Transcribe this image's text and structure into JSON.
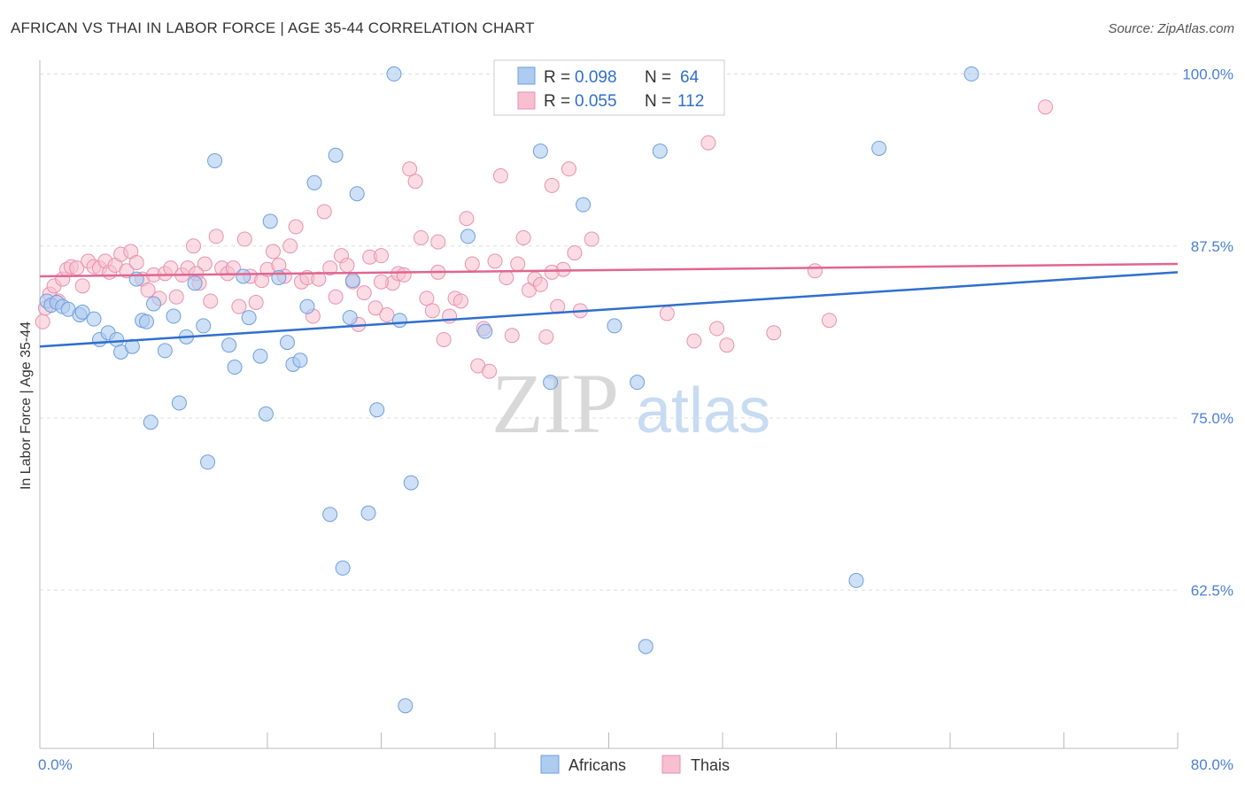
{
  "title": "AFRICAN VS THAI IN LABOR FORCE | AGE 35-44 CORRELATION CHART",
  "source": "Source: ZipAtlas.com",
  "watermark": {
    "zip": "ZIP",
    "atlas": "atlas"
  },
  "legend": {
    "africans": {
      "r_label": "R =",
      "r_value": "0.098",
      "n_label": "N =",
      "n_value": "64"
    },
    "thais": {
      "r_label": "R =",
      "r_value": "0.055",
      "n_label": "N =",
      "n_value": "112"
    }
  },
  "bottom_legend": {
    "africans": "Africans",
    "thais": "Thais"
  },
  "colors": {
    "africans_fill": "#aecbf0",
    "africans_stroke": "#6f9fde",
    "africans_line": "#2f6fcc",
    "thais_fill": "#f7bfd0",
    "thais_stroke": "#e892ae",
    "thais_line": "#e06690",
    "tick_text": "#4a7fd4",
    "grid": "#dddddd"
  },
  "chart_data": {
    "type": "scatter",
    "title": "AFRICAN VS THAI IN LABOR FORCE | AGE 35-44 CORRELATION CHART",
    "xlabel": "",
    "ylabel": "In Labor Force | Age 35-44",
    "xlim": [
      0,
      80
    ],
    "ylim": [
      51,
      101
    ],
    "x_tick_labels": [
      "0.0%",
      "80.0%"
    ],
    "y_ticks": [
      62.5,
      75.0,
      87.5,
      100.0
    ],
    "y_tick_labels": [
      "62.5%",
      "75.0%",
      "87.5%",
      "100.0%"
    ],
    "grid": "horizontal dashed",
    "legend_position": "top-center",
    "series": [
      {
        "name": "Africans",
        "r": 0.098,
        "n": 64,
        "trend": [
          [
            0,
            80.2
          ],
          [
            80,
            85.6
          ]
        ],
        "points": [
          [
            0.5,
            83.5
          ],
          [
            0.8,
            83.2
          ],
          [
            1.2,
            83.4
          ],
          [
            1.6,
            83.1
          ],
          [
            2.0,
            82.9
          ],
          [
            2.8,
            82.5
          ],
          [
            3.0,
            82.7
          ],
          [
            3.8,
            82.2
          ],
          [
            4.2,
            80.7
          ],
          [
            4.8,
            81.2
          ],
          [
            5.4,
            80.7
          ],
          [
            5.7,
            79.8
          ],
          [
            6.5,
            80.2
          ],
          [
            6.8,
            85.1
          ],
          [
            7.2,
            82.1
          ],
          [
            7.8,
            74.7
          ],
          [
            8.0,
            83.3
          ],
          [
            8.8,
            79.9
          ],
          [
            9.4,
            82.4
          ],
          [
            9.8,
            76.1
          ],
          [
            10.3,
            80.9
          ],
          [
            10.9,
            84.8
          ],
          [
            11.5,
            81.7
          ],
          [
            11.8,
            71.8
          ],
          [
            12.3,
            93.7
          ],
          [
            13.3,
            80.3
          ],
          [
            13.7,
            78.7
          ],
          [
            14.3,
            85.3
          ],
          [
            14.7,
            82.3
          ],
          [
            15.5,
            79.5
          ],
          [
            15.9,
            75.3
          ],
          [
            16.2,
            89.3
          ],
          [
            16.8,
            85.2
          ],
          [
            17.4,
            80.5
          ],
          [
            17.8,
            78.9
          ],
          [
            18.3,
            79.2
          ],
          [
            18.8,
            83.1
          ],
          [
            19.3,
            92.1
          ],
          [
            20.4,
            68.0
          ],
          [
            20.8,
            94.1
          ],
          [
            21.3,
            64.1
          ],
          [
            21.8,
            82.3
          ],
          [
            22.3,
            91.3
          ],
          [
            23.1,
            68.1
          ],
          [
            23.7,
            75.6
          ],
          [
            24.9,
            100.0
          ],
          [
            25.3,
            82.1
          ],
          [
            25.7,
            54.1
          ],
          [
            26.1,
            70.3
          ],
          [
            30.1,
            88.2
          ],
          [
            31.3,
            81.3
          ],
          [
            33.0,
            100.0
          ],
          [
            35.2,
            94.4
          ],
          [
            35.9,
            77.6
          ],
          [
            38.2,
            90.5
          ],
          [
            40.4,
            81.7
          ],
          [
            42.0,
            77.6
          ],
          [
            42.6,
            58.4
          ],
          [
            43.6,
            94.4
          ],
          [
            57.4,
            63.2
          ],
          [
            59.0,
            94.6
          ],
          [
            65.5,
            100.0
          ],
          [
            7.5,
            82.0
          ],
          [
            22.0,
            85.0
          ]
        ]
      },
      {
        "name": "Thais",
        "r": 0.055,
        "n": 112,
        "trend": [
          [
            0,
            85.3
          ],
          [
            80,
            86.2
          ]
        ],
        "points": [
          [
            0.2,
            82.0
          ],
          [
            0.4,
            83.0
          ],
          [
            0.7,
            84.0
          ],
          [
            1.0,
            84.6
          ],
          [
            1.3,
            83.5
          ],
          [
            1.6,
            85.1
          ],
          [
            1.9,
            85.8
          ],
          [
            2.2,
            86.0
          ],
          [
            2.6,
            85.9
          ],
          [
            3.0,
            84.6
          ],
          [
            3.4,
            86.4
          ],
          [
            3.8,
            86.0
          ],
          [
            4.2,
            85.9
          ],
          [
            4.6,
            86.4
          ],
          [
            4.9,
            85.6
          ],
          [
            5.3,
            86.1
          ],
          [
            5.7,
            86.9
          ],
          [
            6.1,
            85.7
          ],
          [
            6.4,
            87.1
          ],
          [
            6.8,
            86.3
          ],
          [
            7.2,
            85.1
          ],
          [
            7.6,
            84.3
          ],
          [
            8.0,
            85.4
          ],
          [
            8.4,
            83.7
          ],
          [
            8.8,
            85.5
          ],
          [
            9.2,
            85.9
          ],
          [
            9.6,
            83.8
          ],
          [
            10.0,
            85.4
          ],
          [
            10.4,
            85.9
          ],
          [
            10.8,
            87.5
          ],
          [
            11.2,
            84.8
          ],
          [
            11.6,
            86.2
          ],
          [
            12.0,
            83.5
          ],
          [
            12.4,
            88.2
          ],
          [
            12.8,
            85.9
          ],
          [
            13.2,
            85.5
          ],
          [
            13.6,
            85.9
          ],
          [
            14.0,
            83.1
          ],
          [
            14.4,
            88.0
          ],
          [
            14.8,
            85.3
          ],
          [
            15.2,
            83.4
          ],
          [
            15.6,
            85.0
          ],
          [
            16.0,
            85.8
          ],
          [
            16.4,
            87.1
          ],
          [
            16.8,
            86.1
          ],
          [
            17.2,
            85.3
          ],
          [
            17.6,
            87.5
          ],
          [
            18.0,
            88.9
          ],
          [
            18.4,
            84.9
          ],
          [
            18.8,
            85.2
          ],
          [
            19.2,
            82.4
          ],
          [
            19.6,
            85.1
          ],
          [
            20.0,
            90.0
          ],
          [
            20.4,
            85.9
          ],
          [
            20.8,
            83.8
          ],
          [
            21.2,
            86.8
          ],
          [
            21.6,
            86.1
          ],
          [
            22.0,
            84.9
          ],
          [
            22.4,
            81.8
          ],
          [
            22.8,
            84.1
          ],
          [
            23.2,
            86.7
          ],
          [
            23.6,
            83.0
          ],
          [
            24.0,
            86.8
          ],
          [
            24.4,
            82.5
          ],
          [
            24.8,
            84.8
          ],
          [
            25.2,
            85.5
          ],
          [
            25.6,
            85.4
          ],
          [
            26.0,
            93.1
          ],
          [
            26.4,
            92.2
          ],
          [
            26.8,
            88.1
          ],
          [
            27.2,
            83.7
          ],
          [
            27.6,
            82.8
          ],
          [
            28.0,
            87.8
          ],
          [
            28.4,
            80.7
          ],
          [
            28.8,
            82.4
          ],
          [
            29.2,
            83.7
          ],
          [
            29.6,
            83.5
          ],
          [
            30.0,
            89.5
          ],
          [
            30.4,
            86.2
          ],
          [
            30.8,
            78.8
          ],
          [
            31.2,
            81.5
          ],
          [
            31.6,
            78.4
          ],
          [
            32.0,
            86.4
          ],
          [
            32.4,
            92.6
          ],
          [
            32.8,
            85.2
          ],
          [
            33.2,
            81.0
          ],
          [
            33.6,
            86.2
          ],
          [
            34.0,
            88.1
          ],
          [
            34.4,
            84.3
          ],
          [
            34.8,
            85.1
          ],
          [
            35.2,
            84.7
          ],
          [
            35.6,
            80.9
          ],
          [
            36.0,
            91.9
          ],
          [
            36.4,
            83.1
          ],
          [
            36.8,
            85.8
          ],
          [
            37.2,
            93.1
          ],
          [
            37.6,
            87.0
          ],
          [
            38.0,
            82.8
          ],
          [
            38.8,
            88.0
          ],
          [
            44.1,
            82.6
          ],
          [
            46.0,
            80.6
          ],
          [
            47.0,
            95.0
          ],
          [
            47.6,
            81.5
          ],
          [
            48.3,
            80.3
          ],
          [
            51.6,
            81.2
          ],
          [
            54.5,
            85.7
          ],
          [
            55.5,
            82.1
          ],
          [
            70.7,
            97.6
          ],
          [
            11.0,
            85.5
          ],
          [
            24.0,
            84.9
          ],
          [
            36.0,
            85.6
          ],
          [
            28.0,
            85.6
          ]
        ]
      }
    ]
  }
}
